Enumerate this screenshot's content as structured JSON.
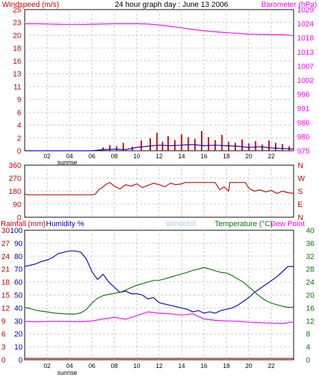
{
  "chart_data": [
    {
      "type": "line",
      "title": "24 hour graph day : June 13 2006",
      "left_axis_label": "Windspeed (m/s)",
      "right_axis_label": "Barometer (hPa)",
      "x_ticks": [
        "02",
        "04",
        "06",
        "08",
        "10",
        "12",
        "14",
        "16",
        "18",
        "20",
        "22"
      ],
      "x_annotations": [
        {
          "at": "04",
          "text": "sunrise"
        }
      ],
      "left_ticks": [
        0,
        2,
        4,
        6,
        9,
        11,
        13,
        16,
        18,
        20,
        23,
        25
      ],
      "right_ticks": [
        975,
        980,
        986,
        991,
        996,
        1002,
        1007,
        1013,
        1018,
        1024,
        1029
      ],
      "ylim_left": [
        0,
        25
      ],
      "ylim_right": [
        975,
        1029
      ],
      "colors": {
        "left": "#cc0000",
        "right": "#ff00ff",
        "barometer": "#ff00ff",
        "gust": "#cc0000",
        "wind": "#0000cc"
      },
      "series": [
        {
          "name": "Barometer",
          "axis": "right",
          "x": [
            0,
            1,
            2,
            3,
            4,
            5,
            6,
            7,
            8,
            9,
            10,
            11,
            12,
            13,
            14,
            15,
            16,
            17,
            18,
            19,
            20,
            21,
            22,
            23,
            24
          ],
          "values": [
            1023.6,
            1023.6,
            1023.5,
            1023.4,
            1023.3,
            1023.3,
            1023.4,
            1023.5,
            1023.6,
            1023.6,
            1023.6,
            1023.5,
            1023.1,
            1022.6,
            1022.0,
            1021.4,
            1020.9,
            1020.5,
            1020.2,
            1019.9,
            1019.6,
            1019.5,
            1019.4,
            1019.4,
            1019.1
          ]
        },
        {
          "name": "Wind gust",
          "axis": "left",
          "style": "bars",
          "x": [
            7,
            7.6,
            8.2,
            8.8,
            9.6,
            10.4,
            11.2,
            11.8,
            12.3,
            12.8,
            13.4,
            14.0,
            14.6,
            15.2,
            15.8,
            16.4,
            17.0,
            17.6,
            18.2,
            18.8,
            19.4,
            20.0,
            20.6,
            21.2,
            21.8,
            22.4,
            23.0,
            23.6
          ],
          "values": [
            0.6,
            1.0,
            0.8,
            1.4,
            0.7,
            1.8,
            2.2,
            3.2,
            1.6,
            2.6,
            1.9,
            2.9,
            2.4,
            2.1,
            3.5,
            2.4,
            1.9,
            2.8,
            1.6,
            1.4,
            2.0,
            1.3,
            1.7,
            1.1,
            1.8,
            1.4,
            1.2,
            0.8
          ]
        },
        {
          "name": "Wind speed",
          "axis": "left",
          "x": [
            0,
            6,
            7,
            8,
            9,
            10,
            11,
            12,
            13,
            14,
            15,
            16,
            17,
            18,
            19,
            20,
            21,
            22,
            23,
            24
          ],
          "values": [
            0,
            0,
            0.2,
            0.3,
            0.2,
            0.6,
            0.8,
            1.0,
            0.9,
            1.0,
            1.1,
            0.9,
            1.0,
            0.9,
            0.8,
            0.6,
            0.7,
            0.5,
            0.4,
            0.3
          ]
        }
      ]
    },
    {
      "type": "line",
      "title": "",
      "left_ticks": [
        0,
        90,
        180,
        270,
        360
      ],
      "right_ticks": [
        "N",
        "W",
        "S",
        "E",
        "N"
      ],
      "ylim": [
        0,
        360
      ],
      "colors": {
        "line": "#cc0000",
        "axis": "#cc0000"
      },
      "series": [
        {
          "name": "Wind direction",
          "x": [
            0,
            0.3,
            6.0,
            6.3,
            6.6,
            7.0,
            7.2,
            7.6,
            8.0,
            8.5,
            9.0,
            9.5,
            10.0,
            10.5,
            11.0,
            11.5,
            12.0,
            12.5,
            13.0,
            13.5,
            14.0,
            14.3,
            15.0,
            15.5,
            16.0,
            16.5,
            17.0,
            17.4,
            17.8,
            18.2,
            18.3,
            19.0,
            19.7,
            20.0,
            20.5,
            21.0,
            21.5,
            22.0,
            22.5,
            23.0,
            23.5,
            24.0
          ],
          "values": [
            160,
            155,
            155,
            160,
            190,
            210,
            225,
            240,
            215,
            195,
            225,
            215,
            230,
            205,
            220,
            235,
            225,
            210,
            235,
            225,
            230,
            240,
            240,
            240,
            240,
            240,
            240,
            190,
            210,
            180,
            240,
            240,
            240,
            200,
            180,
            190,
            175,
            185,
            165,
            180,
            170,
            165
          ]
        }
      ]
    },
    {
      "type": "line",
      "title": "",
      "labels": {
        "rainfall": "Rainfall (mm)",
        "humidity": "Humidity %",
        "windchill": "Windchill",
        "temperature": "Temperature (°C)",
        "dewpoint": "Dew Point"
      },
      "rain_ticks": [
        0,
        3,
        6,
        9,
        12,
        15,
        18,
        21,
        24,
        27,
        30
      ],
      "humidity_ticks": [
        0,
        10,
        20,
        30,
        40,
        50,
        60,
        70,
        80,
        90,
        100
      ],
      "temp_ticks": [
        0,
        4,
        8,
        12,
        16,
        20,
        24,
        28,
        32,
        36,
        40
      ],
      "ylim_humidity": [
        0,
        100
      ],
      "ylim_temp": [
        0,
        40
      ],
      "colors": {
        "rainfall": "#cc0000",
        "humidity": "#0000cc",
        "temperature": "#007700",
        "dewpoint": "#ff00ff",
        "windchill": "#aaccee"
      },
      "series": [
        {
          "name": "Humidity",
          "axis": "humidity",
          "color": "#0000cc",
          "x": [
            0,
            0.5,
            1,
            1.5,
            2,
            2.5,
            3,
            3.5,
            4,
            4.5,
            5,
            5.5,
            6,
            6.5,
            7,
            7.5,
            8,
            8.5,
            9,
            9.5,
            10,
            10.5,
            11,
            11.5,
            12,
            12.5,
            13,
            13.5,
            14,
            14.5,
            15,
            15.5,
            16,
            16.5,
            17,
            17.5,
            18,
            18.5,
            19,
            19.5,
            20,
            20.5,
            21,
            21.5,
            22,
            22.5,
            23,
            23.5,
            24
          ],
          "values": [
            72,
            73,
            74,
            76,
            77,
            79,
            82,
            83,
            84,
            84,
            83,
            78,
            68,
            62,
            66,
            60,
            56,
            52,
            53,
            51,
            51,
            50,
            47,
            48,
            44,
            43,
            42,
            41,
            40,
            39,
            37,
            38,
            36,
            37,
            36,
            38,
            39,
            40,
            42,
            45,
            48,
            52,
            55,
            58,
            61,
            64,
            68,
            72,
            72
          ]
        },
        {
          "name": "Temperature",
          "axis": "temp",
          "color": "#007700",
          "x": [
            0,
            0.5,
            1,
            1.5,
            2,
            2.5,
            3,
            3.5,
            4,
            4.5,
            5,
            5.5,
            6,
            6.5,
            7,
            7.5,
            8,
            8.5,
            9,
            9.5,
            10,
            10.5,
            11,
            11.5,
            12,
            12.5,
            13,
            13.5,
            14,
            14.5,
            15,
            15.5,
            16,
            16.5,
            17,
            17.5,
            18,
            18.5,
            19,
            19.5,
            20,
            20.5,
            21,
            21.5,
            22,
            22.5,
            23,
            23.5,
            24
          ],
          "values": [
            16.2,
            15.8,
            15.3,
            15.0,
            14.8,
            14.5,
            14.3,
            14.2,
            14.1,
            14.1,
            14.5,
            15.5,
            17.5,
            19.0,
            19.8,
            20.2,
            20.5,
            20.8,
            21.5,
            22.3,
            23.0,
            23.5,
            24.0,
            24.5,
            24.5,
            25.0,
            25.5,
            26.0,
            26.5,
            27.0,
            27.6,
            28.0,
            28.5,
            28.0,
            27.5,
            27.0,
            26.8,
            26.0,
            25.0,
            24.0,
            22.5,
            21.0,
            19.5,
            18.3,
            17.5,
            17.0,
            16.5,
            16.2,
            16.2
          ]
        },
        {
          "name": "Dew Point",
          "axis": "temp",
          "color": "#ff00ff",
          "x": [
            0,
            1,
            2,
            3,
            4,
            5,
            6,
            7,
            8,
            9,
            10,
            11,
            12,
            13,
            14,
            15,
            16,
            17,
            18,
            19,
            20,
            21,
            22,
            23,
            24
          ],
          "values": [
            11.8,
            11.7,
            11.8,
            11.8,
            11.8,
            11.7,
            12.0,
            12.6,
            13.1,
            12.5,
            13.6,
            14.8,
            14.4,
            14.2,
            13.8,
            14.2,
            12.6,
            12.2,
            12.0,
            11.9,
            11.6,
            11.5,
            11.3,
            11.2,
            11.7
          ]
        },
        {
          "name": "Rainfall",
          "axis": "rain",
          "color": "#cc0000",
          "x": [
            0,
            24
          ],
          "values": [
            0,
            0
          ]
        }
      ]
    }
  ]
}
